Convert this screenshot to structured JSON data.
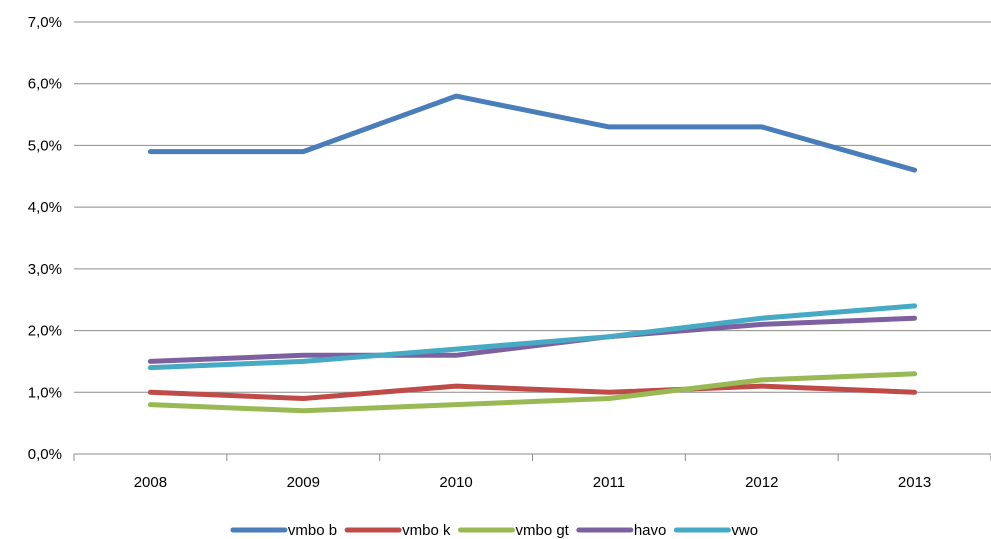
{
  "chart_data": {
    "type": "line",
    "categories": [
      "2008",
      "2009",
      "2010",
      "2011",
      "2012",
      "2013"
    ],
    "y_tick_labels": [
      "0,0%",
      "1,0%",
      "2,0%",
      "3,0%",
      "4,0%",
      "5,0%",
      "6,0%",
      "7,0%"
    ],
    "ylim": [
      0,
      7
    ],
    "grid": true,
    "legend_position": "bottom",
    "series": [
      {
        "name": "vmbo b",
        "color": "#4a7ebb",
        "values": [
          4.9,
          4.9,
          5.8,
          5.3,
          5.3,
          4.6
        ]
      },
      {
        "name": "vmbo k",
        "color": "#be4b48",
        "values": [
          1.0,
          0.9,
          1.1,
          1.0,
          1.1,
          1.0
        ]
      },
      {
        "name": "vmbo gt",
        "color": "#98b954",
        "values": [
          0.8,
          0.7,
          0.8,
          0.9,
          1.2,
          1.3
        ]
      },
      {
        "name": "havo",
        "color": "#7d60a0",
        "values": [
          1.5,
          1.6,
          1.6,
          1.9,
          2.1,
          2.2
        ]
      },
      {
        "name": "vwo",
        "color": "#46aac5",
        "values": [
          1.4,
          1.5,
          1.7,
          1.9,
          2.2,
          2.4
        ]
      }
    ]
  }
}
